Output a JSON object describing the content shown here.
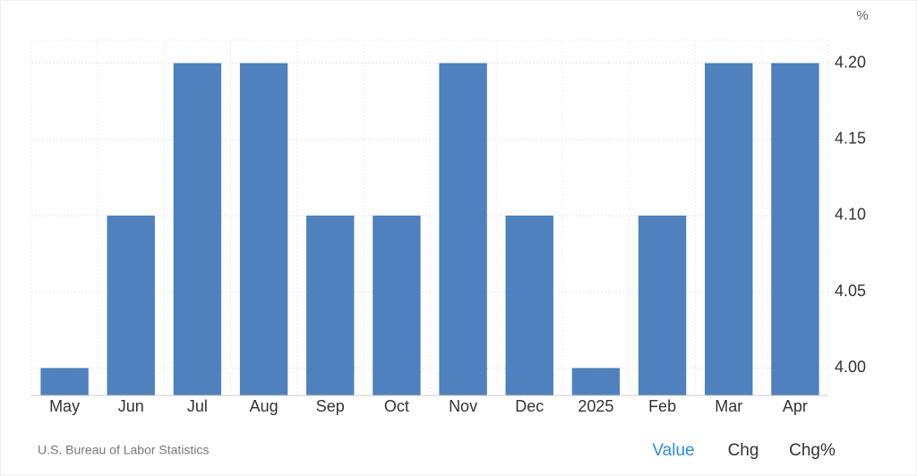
{
  "chart_data": {
    "type": "bar",
    "unit": "%",
    "categories": [
      "May",
      "Jun",
      "Jul",
      "Aug",
      "Sep",
      "Oct",
      "Nov",
      "Dec",
      "2025",
      "Feb",
      "Mar",
      "Apr"
    ],
    "values": [
      4.0,
      4.1,
      4.2,
      4.2,
      4.1,
      4.1,
      4.2,
      4.1,
      4.0,
      4.1,
      4.2,
      4.2
    ],
    "color": "#4e81bd",
    "ylim": [
      3.982,
      4.215
    ],
    "yticks": [
      {
        "value": 4.0,
        "label": "4.00"
      },
      {
        "value": 4.05,
        "label": "4.05"
      },
      {
        "value": 4.1,
        "label": "4.10"
      },
      {
        "value": 4.15,
        "label": "4.15"
      },
      {
        "value": 4.2,
        "label": "4.20"
      }
    ],
    "grid": true
  },
  "footer": {
    "source": "U.S. Bureau of Labor Statistics",
    "controls": [
      "Value",
      "Chg",
      "Chg%"
    ]
  }
}
